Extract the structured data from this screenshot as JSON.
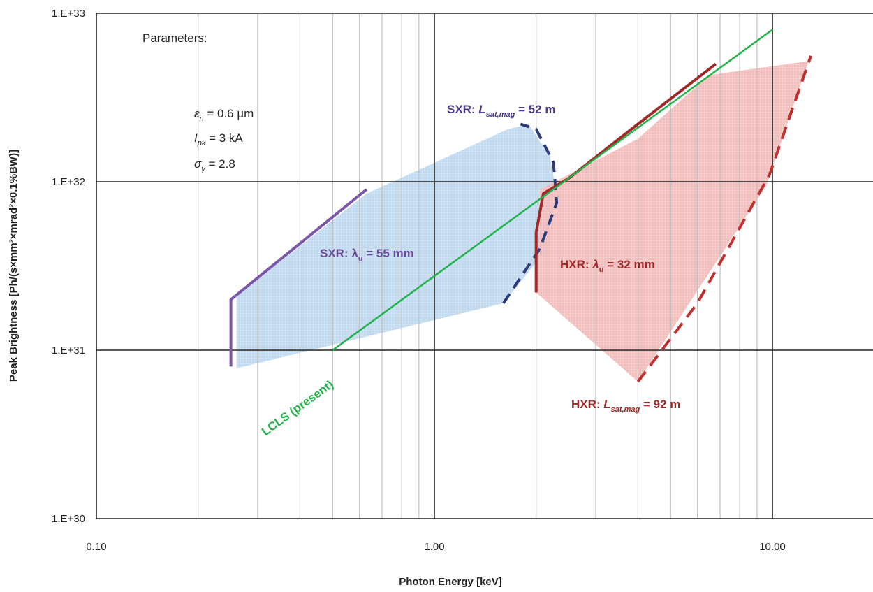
{
  "chart_data": {
    "type": "line",
    "x_scale": "log",
    "y_scale": "log",
    "xlim": [
      0.1,
      20
    ],
    "ylim": [
      1e+30,
      1e+33
    ],
    "xlabel": "Photon  Energy [keV]",
    "ylabel": "Peak Brightness [Ph/(s×mm²×mrad²×0.1%BW)]",
    "x_tick_labels": [
      {
        "value": 0.1,
        "label": "0.10"
      },
      {
        "value": 1,
        "label": "1.00"
      },
      {
        "value": 10,
        "label": "10.00"
      }
    ],
    "y_tick_labels": [
      {
        "value": 1e+30,
        "label": "1.E+30"
      },
      {
        "value": 1e+31,
        "label": "1.E+31"
      },
      {
        "value": 1e+32,
        "label": "1.E+32"
      },
      {
        "value": 1e+33,
        "label": "1.E+33"
      }
    ],
    "grid": true,
    "colors": {
      "sxr_fill": "#bcd8f0",
      "hxr_fill": "#f4b8b8",
      "sxr_line": "#7a55a8",
      "sxr_dash": "#2c3b7a",
      "hxr_line": "#a02828",
      "hxr_dash": "#c0302e",
      "lcls": "#22b24a",
      "grid_major": "#222222",
      "grid_minor": "#c0c0c0"
    },
    "regions": [
      {
        "name": "SXR region",
        "points": [
          [
            0.26,
            7.8e+30
          ],
          [
            1.6,
            1.9e+31
          ],
          [
            2.2,
            4.2e+31
          ],
          [
            2.3,
            8.5e+31
          ],
          [
            2.2,
            1.4e+32
          ],
          [
            1.9,
            2.2e+32
          ],
          [
            1.65,
            2.05e+32
          ],
          [
            0.63,
            8.5e+31
          ],
          [
            0.26,
            2.1e+31
          ]
        ]
      },
      {
        "name": "HXR region",
        "points": [
          [
            2.0,
            2.2e+31
          ],
          [
            2.05,
            9e+31
          ],
          [
            4.0,
            1.8e+32
          ],
          [
            6.5,
            4.3e+32
          ],
          [
            12.8,
            5.2e+32
          ],
          [
            9.6,
            9.5e+31
          ],
          [
            4.0,
            6.5e+30
          ]
        ]
      }
    ],
    "series": [
      {
        "name": "SXR: λu = 55 mm",
        "style": "solid",
        "points": [
          [
            0.25,
            8e+30
          ],
          [
            0.25,
            2e+31
          ],
          [
            0.63,
            9e+31
          ]
        ]
      },
      {
        "name": "SXR: Lsat,mag = 52 m",
        "style": "dashed",
        "points": [
          [
            1.6,
            1.9e+31
          ],
          [
            2.05,
            4e+31
          ],
          [
            2.3,
            7.5e+31
          ],
          [
            2.25,
            1.3e+32
          ],
          [
            2.0,
            2.05e+32
          ],
          [
            1.8,
            2.2e+32
          ]
        ]
      },
      {
        "name": "HXR: λu = 32 mm",
        "style": "solid",
        "points": [
          [
            2.0,
            2.2e+31
          ],
          [
            2.0,
            5e+31
          ],
          [
            2.1,
            8.5e+31
          ],
          [
            2.5,
            1.05e+32
          ],
          [
            4.0,
            2.2e+32
          ],
          [
            6.8,
            5e+32
          ]
        ]
      },
      {
        "name": "HXR: Lsat,mag = 92 m",
        "style": "dashed",
        "points": [
          [
            4.0,
            6.5e+30
          ],
          [
            6.0,
            1.9e+31
          ],
          [
            9.8,
            1.1e+32
          ],
          [
            13.0,
            5.6e+32
          ]
        ]
      },
      {
        "name": "LCLS (present)",
        "style": "solid",
        "points": [
          [
            0.5,
            1e+31
          ],
          [
            10.0,
            8e+32
          ]
        ]
      }
    ],
    "annotations": {
      "parameters_title": "Parameters:",
      "param_emittance": {
        "symbol": "ε",
        "sub": "n",
        "value": " = 0.6 µm"
      },
      "param_current": {
        "symbol": "I",
        "sub": "pk",
        "value": " = 3 kA"
      },
      "param_spread": {
        "symbol": "σ",
        "sub": "γ",
        "value": " = 2.8"
      },
      "sxr_lambda": {
        "prefix": "SXR:  ",
        "symbol": "λ",
        "sub": "u",
        "value": " = 55 mm"
      },
      "sxr_lsat": {
        "prefix": "SXR:  ",
        "symbol": "L",
        "sub": "sat,mag",
        "value": " =  52 m"
      },
      "hxr_lambda": {
        "prefix": "HXR:  ",
        "symbol": "λ",
        "sub": "u",
        "value": " = 32 mm"
      },
      "hxr_lsat": {
        "prefix": "HXR: ",
        "symbol": "L",
        "sub": "sat,mag",
        "value": " = 92 m"
      },
      "lcls": "LCLS (present)"
    }
  }
}
